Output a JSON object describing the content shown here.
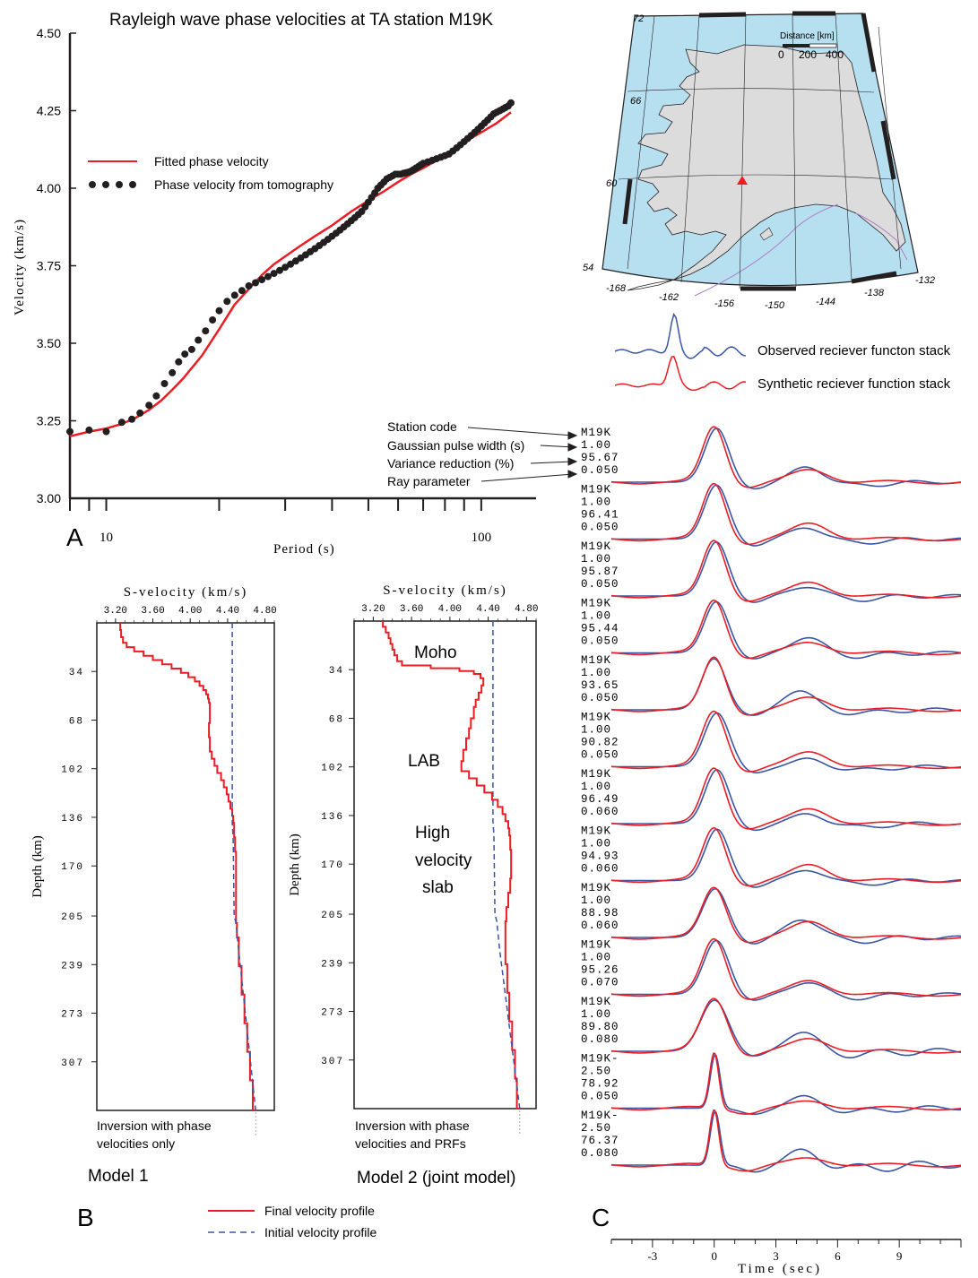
{
  "panel_letters": {
    "a": "A",
    "b": "B",
    "c": "C"
  },
  "chart_data": [
    {
      "id": "A",
      "type": "line",
      "title": "Rayleigh wave phase velocities at TA station M19K",
      "xlabel": "Period (s)",
      "ylabel": "Velocity (km/s)",
      "xscale": "log",
      "xlim": [
        8,
        140
      ],
      "ylim": [
        3.0,
        4.5
      ],
      "x_tick_labels": [
        "10",
        "100"
      ],
      "y_tick_labels": [
        "3.00",
        "3.25",
        "3.50",
        "3.75",
        "4.00",
        "4.25",
        "4.50"
      ],
      "legend_position": "upper-left",
      "series": [
        {
          "name": "Fitted phase velocity",
          "color": "#ed1c24",
          "style": "line",
          "x": [
            8,
            9,
            10,
            11,
            12,
            13,
            14,
            15,
            16,
            18,
            20,
            22,
            24,
            26,
            28,
            30,
            33,
            36,
            40,
            45,
            50,
            55,
            60,
            65,
            70,
            75,
            80,
            85,
            90,
            95,
            100,
            110,
            120
          ],
          "y": [
            3.2,
            3.215,
            3.225,
            3.24,
            3.26,
            3.285,
            3.315,
            3.35,
            3.385,
            3.46,
            3.545,
            3.625,
            3.675,
            3.72,
            3.755,
            3.78,
            3.815,
            3.845,
            3.88,
            3.925,
            3.96,
            3.99,
            4.02,
            4.045,
            4.065,
            4.085,
            4.105,
            4.125,
            4.145,
            4.165,
            4.18,
            4.21,
            4.245
          ]
        },
        {
          "name": "Phase velocity from tomography",
          "color": "#231f20",
          "style": "dots",
          "x": [
            8,
            9,
            10,
            11,
            11.7,
            12.3,
            13,
            13.6,
            14.3,
            15,
            15.6,
            16.2,
            16.9,
            17.6,
            18.4,
            19.2,
            20,
            21,
            22,
            23,
            24,
            25,
            26,
            27,
            28,
            29,
            30,
            31,
            32,
            33,
            34,
            35,
            36,
            37,
            38,
            39,
            40,
            41,
            42,
            43,
            44,
            45,
            46,
            47,
            48,
            49,
            50,
            51,
            52,
            53,
            54,
            55,
            56,
            57,
            58,
            59,
            60,
            61,
            62,
            63,
            64,
            65,
            66,
            67,
            68,
            69,
            70,
            72,
            74,
            76,
            78,
            80,
            82,
            84,
            86,
            88,
            90,
            92,
            94,
            96,
            98,
            100,
            102,
            104,
            106,
            108,
            110,
            112,
            114,
            116,
            118,
            120
          ],
          "y": [
            3.215,
            3.22,
            3.215,
            3.245,
            3.255,
            3.275,
            3.3,
            3.33,
            3.37,
            3.405,
            3.44,
            3.465,
            3.48,
            3.51,
            3.54,
            3.575,
            3.605,
            3.635,
            3.655,
            3.67,
            3.685,
            3.695,
            3.705,
            3.715,
            3.725,
            3.735,
            3.745,
            3.755,
            3.765,
            3.775,
            3.785,
            3.795,
            3.805,
            3.815,
            3.825,
            3.835,
            3.845,
            3.855,
            3.865,
            3.875,
            3.885,
            3.895,
            3.905,
            3.915,
            3.925,
            3.94,
            3.955,
            3.97,
            3.985,
            4.0,
            4.01,
            4.02,
            4.03,
            4.035,
            4.04,
            4.045,
            4.045,
            4.045,
            4.048,
            4.05,
            4.052,
            4.055,
            4.06,
            4.065,
            4.07,
            4.075,
            4.08,
            4.085,
            4.09,
            4.095,
            4.1,
            4.105,
            4.11,
            4.12,
            4.13,
            4.14,
            4.15,
            4.16,
            4.17,
            4.18,
            4.19,
            4.2,
            4.21,
            4.22,
            4.23,
            4.24,
            4.245,
            4.25,
            4.255,
            4.26,
            4.265,
            4.275
          ]
        }
      ]
    },
    {
      "id": "B-model1",
      "type": "line",
      "caption": "Model 1",
      "note_lines": [
        "Inversion with phase",
        "velocities only"
      ],
      "xlabel": "S-velocity (km/s)",
      "ylabel": "Depth (km)",
      "xlim": [
        3.0,
        4.9
      ],
      "ylim": [
        341,
        0
      ],
      "x_tick_labels": [
        "3.20",
        "3.60",
        "4.00",
        "4.40",
        "4.80"
      ],
      "y_tick_labels": [
        "34",
        "68",
        "102",
        "136",
        "170",
        "205",
        "239",
        "273",
        "307"
      ],
      "series": [
        {
          "name": "Final velocity profile",
          "color": "#ed1c24",
          "style": "step",
          "depth": [
            0,
            5,
            10,
            14,
            17,
            20,
            23,
            26,
            29,
            32,
            35,
            38,
            41,
            44,
            47,
            50,
            53,
            56,
            60,
            70,
            80,
            90,
            95,
            100,
            105,
            110,
            115,
            120,
            125,
            130,
            135,
            140,
            150,
            160,
            170,
            180,
            190,
            200,
            210,
            220,
            240,
            260,
            280,
            300,
            320,
            341
          ],
          "vs": [
            3.25,
            3.26,
            3.28,
            3.32,
            3.4,
            3.5,
            3.6,
            3.7,
            3.8,
            3.9,
            3.98,
            4.05,
            4.1,
            4.14,
            4.17,
            4.19,
            4.2,
            4.21,
            4.21,
            4.2,
            4.21,
            4.23,
            4.26,
            4.29,
            4.33,
            4.36,
            4.39,
            4.41,
            4.43,
            4.45,
            4.46,
            4.47,
            4.48,
            4.49,
            4.49,
            4.49,
            4.49,
            4.49,
            4.5,
            4.52,
            4.55,
            4.58,
            4.61,
            4.64,
            4.67,
            4.7
          ]
        },
        {
          "name": "Initial velocity profile",
          "color": "#3a55a4",
          "style": "dashed",
          "depth": [
            0,
            140,
            150,
            205,
            210,
            230,
            341
          ],
          "vs": [
            4.45,
            4.45,
            4.46,
            4.47,
            4.49,
            4.52,
            4.7
          ]
        }
      ]
    },
    {
      "id": "B-model2",
      "type": "line",
      "caption": "Model 2 (joint model)",
      "note_lines": [
        "Inversion with phase",
        "velocities and PRFs"
      ],
      "annotations": [
        "Moho",
        "LAB",
        "High",
        "velocity",
        "slab"
      ],
      "xlabel": "S-velocity (km/s)",
      "ylabel": "Depth (km)",
      "xlim": [
        3.0,
        4.9
      ],
      "ylim": [
        341,
        0
      ],
      "x_tick_labels": [
        "3.20",
        "3.60",
        "4.00",
        "4.40",
        "4.80"
      ],
      "y_tick_labels": [
        "34",
        "68",
        "102",
        "136",
        "170",
        "205",
        "239",
        "273",
        "307"
      ],
      "series": [
        {
          "name": "Final velocity profile",
          "color": "#ed1c24",
          "style": "step",
          "depth": [
            0,
            4,
            8,
            12,
            16,
            20,
            24,
            28,
            31,
            33,
            35,
            37,
            40,
            45,
            50,
            55,
            60,
            68,
            75,
            82,
            90,
            98,
            105,
            110,
            115,
            120,
            125,
            130,
            135,
            140,
            145,
            150,
            160,
            170,
            180,
            190,
            200,
            210,
            220,
            240,
            260,
            280,
            300,
            320,
            341
          ],
          "vs": [
            3.3,
            3.33,
            3.36,
            3.38,
            3.4,
            3.42,
            3.45,
            3.5,
            3.8,
            4.1,
            4.25,
            4.32,
            4.35,
            4.33,
            4.3,
            4.27,
            4.25,
            4.22,
            4.2,
            4.17,
            4.14,
            4.12,
            4.2,
            4.28,
            4.36,
            4.44,
            4.5,
            4.55,
            4.58,
            4.61,
            4.62,
            4.63,
            4.64,
            4.64,
            4.63,
            4.61,
            4.59,
            4.58,
            4.58,
            4.6,
            4.62,
            4.65,
            4.68,
            4.7,
            4.73
          ]
        },
        {
          "name": "Initial velocity profile",
          "color": "#3a55a4",
          "style": "dashed",
          "depth": [
            0,
            140,
            150,
            205,
            210,
            230,
            341
          ],
          "vs": [
            4.45,
            4.45,
            4.46,
            4.47,
            4.49,
            4.52,
            4.73
          ]
        }
      ]
    },
    {
      "id": "C",
      "type": "line",
      "xlabel": "Time (sec)",
      "xlim": [
        -5,
        12
      ],
      "x_tick_labels": [
        "-3",
        "0",
        "3",
        "6",
        "9"
      ],
      "legend_position": "top",
      "series_names": [
        "Observed reciever functon stack",
        "Synthetic reciever function stack"
      ],
      "series_colors": [
        "#3a55a4",
        "#ed1c24"
      ],
      "label_key": [
        "Station code",
        "Gaussian pulse width (s)",
        "Variance reduction (%)",
        "Ray parameter"
      ],
      "traces": [
        {
          "station": "M19K",
          "gauss": "1.00",
          "vr": "95.67",
          "ray": "0.050",
          "amp": 1.0,
          "w": 1.0,
          "a2": 0.28,
          "b2": 0.22,
          "sh": 0.25,
          "n": 0.3
        },
        {
          "station": "M19K",
          "gauss": "1.00",
          "vr": "96.41",
          "ray": "0.050",
          "amp": 1.0,
          "w": 1.0,
          "a2": 0.22,
          "b2": 0.28,
          "sh": 0.2,
          "n": 0.3
        },
        {
          "station": "M19K",
          "gauss": "1.00",
          "vr": "95.87",
          "ray": "0.050",
          "amp": 1.0,
          "w": 1.0,
          "a2": 0.18,
          "b2": 0.24,
          "sh": 0.2,
          "n": 0.35
        },
        {
          "station": "M19K",
          "gauss": "1.00",
          "vr": "95.44",
          "ray": "0.050",
          "amp": 0.95,
          "w": 1.0,
          "a2": 0.28,
          "b2": 0.18,
          "sh": 0.2,
          "n": 0.35
        },
        {
          "station": "M19K",
          "gauss": "1.00",
          "vr": "93.65",
          "ray": "0.050",
          "amp": 0.95,
          "w": 1.0,
          "a2": 0.34,
          "b2": 0.22,
          "sh": -0.2,
          "n": 0.35
        },
        {
          "station": "M19K",
          "gauss": "1.00",
          "vr": "90.82",
          "ray": "0.050",
          "amp": 1.0,
          "w": 1.05,
          "a2": 0.14,
          "b2": 0.26,
          "sh": 0.3,
          "n": 0.3
        },
        {
          "station": "M19K",
          "gauss": "1.00",
          "vr": "96.49",
          "ray": "0.060",
          "amp": 1.0,
          "w": 1.0,
          "a2": 0.18,
          "b2": 0.26,
          "sh": 0.3,
          "n": 0.3
        },
        {
          "station": "M19K",
          "gauss": "1.00",
          "vr": "94.93",
          "ray": "0.060",
          "amp": 0.95,
          "w": 1.0,
          "a2": 0.2,
          "b2": 0.28,
          "sh": 0.3,
          "n": 0.3
        },
        {
          "station": "M19K",
          "gauss": "1.00",
          "vr": "88.98",
          "ray": "0.060",
          "amp": 0.9,
          "w": 1.05,
          "a2": 0.34,
          "b2": 0.28,
          "sh": 0.0,
          "n": 0.4
        },
        {
          "station": "M19K",
          "gauss": "1.00",
          "vr": "95.26",
          "ray": "0.070",
          "amp": 1.0,
          "w": 1.05,
          "a2": 0.22,
          "b2": 0.24,
          "sh": 0.2,
          "n": 0.35
        },
        {
          "station": "M19K",
          "gauss": "1.00",
          "vr": "89.80",
          "ray": "0.080",
          "amp": 0.95,
          "w": 1.15,
          "a2": 0.34,
          "b2": 0.22,
          "sh": -0.1,
          "n": 0.6
        },
        {
          "station": "M19K-",
          "gauss": "2.50",
          "vr": "78.92",
          "ray": "0.050",
          "amp": 1.0,
          "w": 0.4,
          "a2": 0.2,
          "b2": 0.12,
          "sh": 0.0,
          "n": 0.45
        },
        {
          "station": "M19K-",
          "gauss": "2.50",
          "vr": "76.37",
          "ray": "0.080",
          "amp": 1.0,
          "w": 0.4,
          "a2": 0.25,
          "b2": 0.12,
          "sh": 0.0,
          "n": 0.7
        }
      ]
    }
  ],
  "shared_legend": {
    "final": "Final velocity profile",
    "initial": "Initial velocity profile",
    "final_color": "#ed1c24",
    "initial_color": "#3a55a4"
  },
  "map": {
    "station_marker_color": "#ed1c24",
    "ocean_color": "#b6dff0",
    "land_color": "#dcdcdc",
    "scale_title": "Distance [km]",
    "scale_ticks": [
      "0",
      "200",
      "400"
    ],
    "lat_labels": [
      "72",
      "66",
      "60",
      "54"
    ],
    "lon_labels": [
      "-168",
      "-162",
      "-156",
      "-150",
      "-144",
      "-138",
      "-132"
    ]
  }
}
